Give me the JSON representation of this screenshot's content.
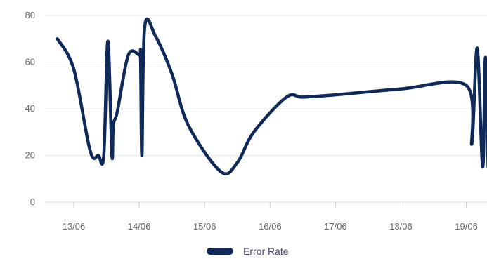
{
  "chart_data": {
    "type": "line",
    "title": "",
    "xlabel": "",
    "ylabel": "",
    "ylim": [
      0,
      80
    ],
    "y_ticks": [
      "0",
      "20",
      "40",
      "60",
      "80"
    ],
    "x_ticks": [
      "13/06",
      "14/06",
      "15/06",
      "16/06",
      "17/06",
      "18/06",
      "19/06"
    ],
    "grid": "horizontal",
    "legend": "bottom-center",
    "series": [
      {
        "name": "Error Rate",
        "color": "#0f2a5a",
        "points": [
          [
            "12/06 18:00",
            70
          ],
          [
            "13/06 00:00",
            57
          ],
          [
            "13/06 06:00",
            22
          ],
          [
            "13/06 09:00",
            20
          ],
          [
            "13/06 11:00",
            20
          ],
          [
            "13/06 12:30",
            69
          ],
          [
            "13/06 14:00",
            20
          ],
          [
            "13/06 14:30",
            33
          ],
          [
            "13/06 16:00",
            39
          ],
          [
            "13/06 20:00",
            63
          ],
          [
            "14/06 00:00",
            63
          ],
          [
            "14/06 00:30",
            62
          ],
          [
            "14/06 01:00",
            20
          ],
          [
            "14/06 02:00",
            75
          ],
          [
            "14/06 06:00",
            71
          ],
          [
            "14/06 12:00",
            55
          ],
          [
            "14/06 18:00",
            33
          ],
          [
            "15/06 06:00",
            13
          ],
          [
            "15/06 12:00",
            17
          ],
          [
            "15/06 18:00",
            30
          ],
          [
            "16/06 06:00",
            45
          ],
          [
            "16/06 12:00",
            45
          ],
          [
            "17/06 00:00",
            46
          ],
          [
            "18/06 00:00",
            48.5
          ],
          [
            "19/06 00:00",
            50
          ],
          [
            "19/06 02:00",
            25
          ],
          [
            "19/06 04:00",
            66
          ],
          [
            "19/06 06:00",
            15
          ],
          [
            "19/06 07:00",
            62
          ],
          [
            "19/06 08:00",
            15
          ]
        ]
      }
    ]
  }
}
